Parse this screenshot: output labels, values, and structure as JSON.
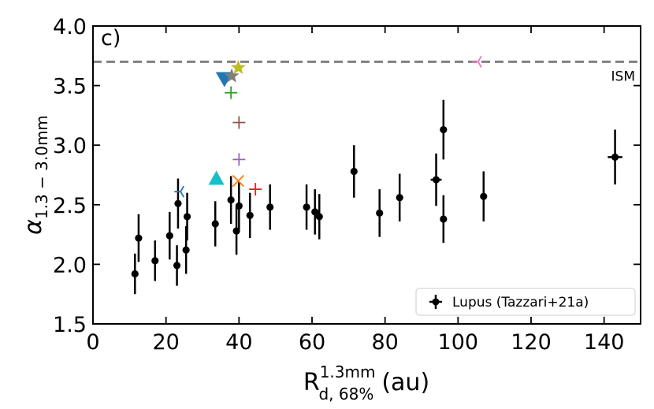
{
  "chart_data": {
    "type": "scatter",
    "panel_label": "c)",
    "xlabel": {
      "main": "R",
      "sub": "d, 68%",
      "sup": "1.3mm",
      "unit": "(au)"
    },
    "ylabel": {
      "main": "α",
      "sub": "1.3 − 3.0mm"
    },
    "xlim": [
      0,
      150
    ],
    "ylim": [
      1.5,
      4.0
    ],
    "xticks": [
      0,
      20,
      40,
      60,
      80,
      100,
      120,
      140
    ],
    "yticks": [
      1.5,
      2.0,
      2.5,
      3.0,
      3.5,
      4.0
    ],
    "xtick_labels": [
      "0",
      "20",
      "40",
      "60",
      "80",
      "100",
      "120",
      "140"
    ],
    "ytick_labels": [
      "1.5",
      "2.0",
      "2.5",
      "3.0",
      "3.5",
      "4.0"
    ],
    "reference_line": {
      "y": 3.7,
      "label": "ISM",
      "color": "#808080"
    },
    "legend": {
      "label": "Lupus (Tazzari+21a)",
      "position": "lower-right"
    },
    "series": [
      {
        "name": "Lupus (Tazzari+21a)",
        "color": "#000000",
        "marker": "circle",
        "points": [
          {
            "x": 11.5,
            "y": 1.92,
            "yerr": 0.17
          },
          {
            "x": 12.5,
            "y": 2.22,
            "yerr": 0.2
          },
          {
            "x": 17,
            "y": 2.03,
            "yerr": 0.17
          },
          {
            "x": 21,
            "y": 2.24,
            "yerr": 0.2
          },
          {
            "x": 23,
            "y": 1.99,
            "yerr": 0.17
          },
          {
            "x": 23.3,
            "y": 2.51,
            "yerr": 0.21
          },
          {
            "x": 25.5,
            "y": 2.12,
            "yerr": 0.2
          },
          {
            "x": 25.8,
            "y": 2.4,
            "yerr": 0.2
          },
          {
            "x": 33.5,
            "y": 2.34,
            "yerr": 0.19
          },
          {
            "x": 37.8,
            "y": 2.54,
            "yerr": 0.2
          },
          {
            "x": 39.3,
            "y": 2.28,
            "yerr": 0.2
          },
          {
            "x": 40,
            "y": 2.49,
            "yerr": 0.2
          },
          {
            "x": 43,
            "y": 2.41,
            "yerr": 0.19
          },
          {
            "x": 48.5,
            "y": 2.48,
            "yerr": 0.19
          },
          {
            "x": 58.5,
            "y": 2.48,
            "yerr": 0.19
          },
          {
            "x": 60.8,
            "y": 2.44,
            "yerr": 0.19
          },
          {
            "x": 62,
            "y": 2.4,
            "yerr": 0.19
          },
          {
            "x": 71.5,
            "y": 2.78,
            "yerr": 0.22
          },
          {
            "x": 78.5,
            "y": 2.43,
            "yerr": 0.2
          },
          {
            "x": 84,
            "y": 2.56,
            "yerr": 0.2
          },
          {
            "x": 94,
            "y": 2.71,
            "yerr": 0.22,
            "xerr": 1.5
          },
          {
            "x": 96,
            "y": 3.13,
            "yerr": 0.25
          },
          {
            "x": 96,
            "y": 2.38,
            "yerr": 0.2
          },
          {
            "x": 107,
            "y": 2.57,
            "yerr": 0.21
          },
          {
            "x": 143,
            "y": 2.9,
            "yerr": 0.23,
            "xerr": 2
          }
        ]
      },
      {
        "name": "downtri-blue",
        "color": "#1f77b4",
        "marker": "triangle-down",
        "points": [
          {
            "x": 36,
            "y": 3.56
          }
        ]
      },
      {
        "name": "star-grey",
        "color": "#7f7f7f",
        "marker": "star",
        "points": [
          {
            "x": 38,
            "y": 3.58
          }
        ]
      },
      {
        "name": "star-olive",
        "color": "#bcbd22",
        "marker": "star",
        "points": [
          {
            "x": 39.8,
            "y": 3.65
          }
        ]
      },
      {
        "name": "plus-green",
        "color": "#2ca02c",
        "marker": "plus",
        "points": [
          {
            "x": 37.8,
            "y": 3.44
          }
        ]
      },
      {
        "name": "plus-brown",
        "color": "#8c564b",
        "marker": "plus",
        "points": [
          {
            "x": 40,
            "y": 3.19
          }
        ]
      },
      {
        "name": "plus-purple",
        "color": "#9467bd",
        "marker": "plus",
        "points": [
          {
            "x": 40,
            "y": 2.88
          }
        ]
      },
      {
        "name": "x-orange",
        "color": "#ff7f0e",
        "marker": "x",
        "points": [
          {
            "x": 39.8,
            "y": 2.7
          }
        ]
      },
      {
        "name": "plus-red",
        "color": "#d62728",
        "marker": "plus",
        "points": [
          {
            "x": 44.5,
            "y": 2.63
          }
        ]
      },
      {
        "name": "uptri-cyan",
        "color": "#17becf",
        "marker": "triangle-up",
        "points": [
          {
            "x": 33.8,
            "y": 2.72
          }
        ]
      },
      {
        "name": "tri-left-blue",
        "color": "#1f77b4",
        "marker": "tri-left",
        "points": [
          {
            "x": 24,
            "y": 2.61
          }
        ]
      },
      {
        "name": "tri-left-pink",
        "color": "#e377c2",
        "marker": "tri-left",
        "points": [
          {
            "x": 105.5,
            "y": 3.7
          }
        ]
      }
    ]
  }
}
